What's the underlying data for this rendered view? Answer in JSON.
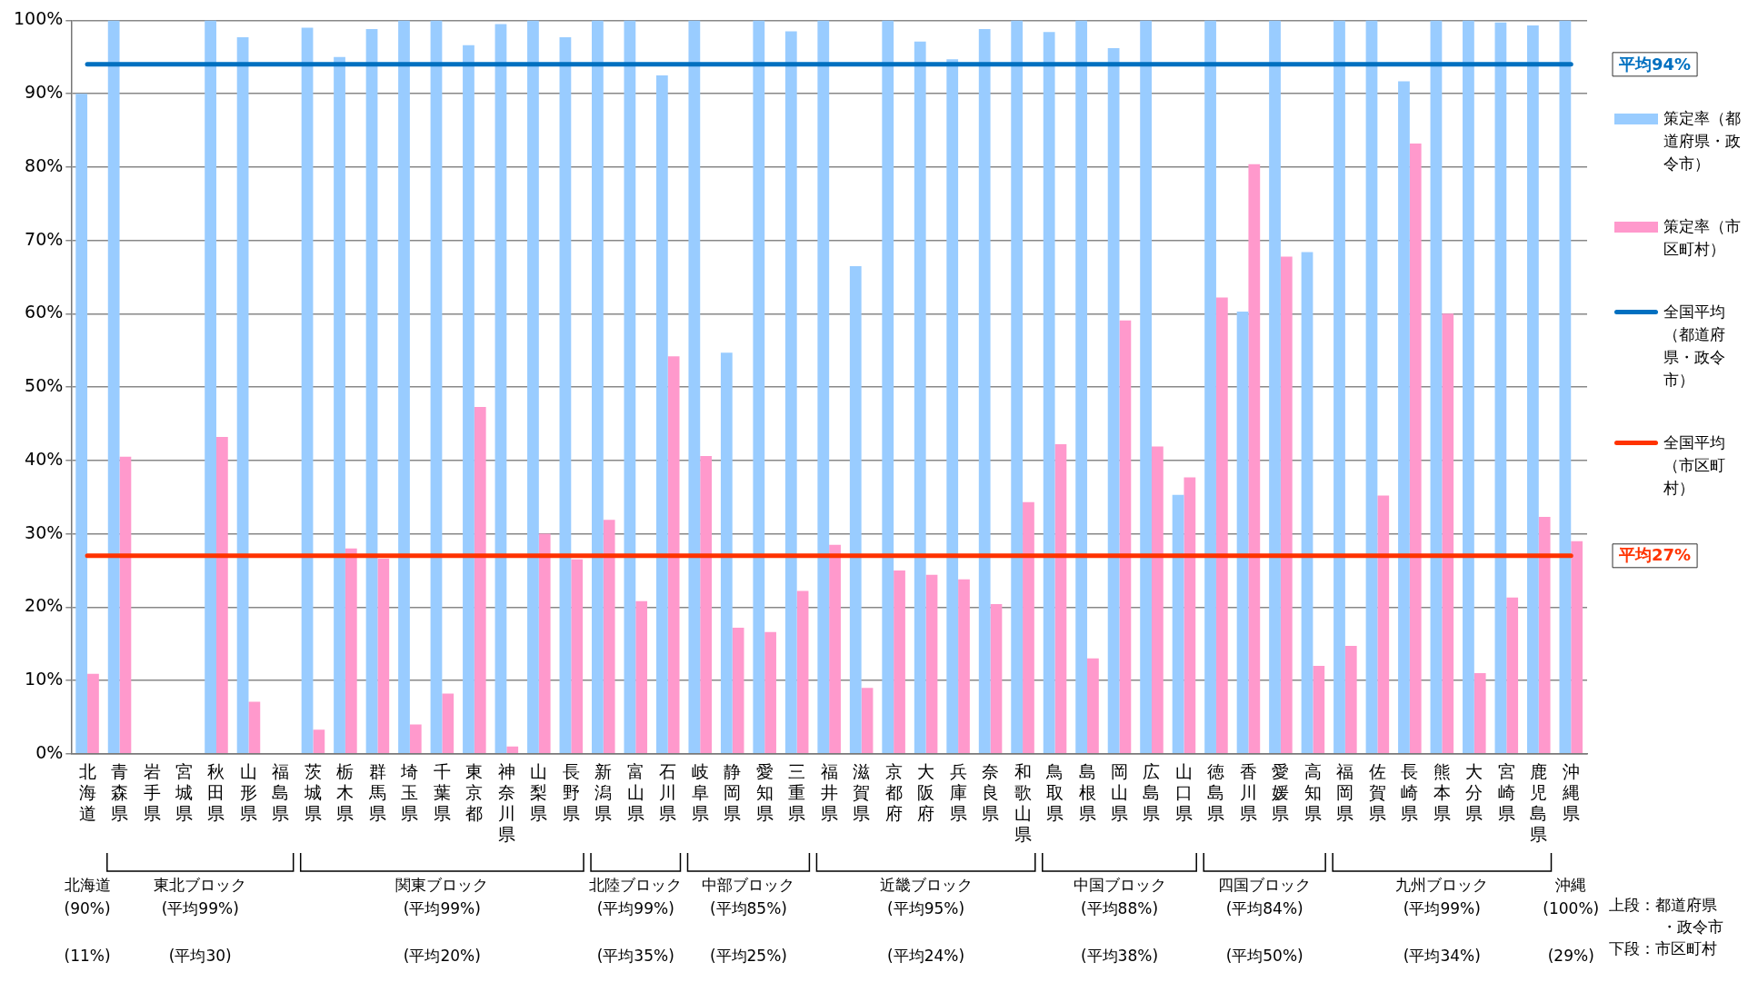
{
  "chart_data": {
    "type": "bar",
    "categories": [
      "北海道",
      "青森県",
      "岩手県",
      "宮城県",
      "秋田県",
      "山形県",
      "福島県",
      "茨城県",
      "栃木県",
      "群馬県",
      "埼玉県",
      "千葉県",
      "東京都",
      "神奈川県",
      "山梨県",
      "長野県",
      "新潟県",
      "富山県",
      "石川県",
      "岐阜県",
      "静岡県",
      "愛知県",
      "三重県",
      "福井県",
      "滋賀県",
      "京都府",
      "大阪府",
      "兵庫県",
      "奈良県",
      "和歌山県",
      "鳥取県",
      "島根県",
      "岡山県",
      "広島県",
      "山口県",
      "徳島県",
      "香川県",
      "愛媛県",
      "高知県",
      "福岡県",
      "佐賀県",
      "長崎県",
      "熊本県",
      "大分県",
      "宮崎県",
      "鹿児島県",
      "沖縄県"
    ],
    "series": [
      {
        "name": "策定率（都道府県・政令市）",
        "color": "#99ccff",
        "values": [
          90,
          100,
          null,
          null,
          100,
          97.7,
          null,
          99,
          95,
          98.8,
          100,
          100,
          96.6,
          99.5,
          100,
          97.7,
          100,
          100,
          92.5,
          100,
          54.7,
          100,
          98.5,
          100,
          66.5,
          100,
          97.1,
          94.7,
          98.8,
          100,
          98.4,
          100,
          96.2,
          100,
          35.3,
          100,
          60.3,
          100,
          68.4,
          100,
          100,
          91.7,
          100,
          100,
          99.7,
          99.3,
          100
        ]
      },
      {
        "name": "策定率（市区町村）",
        "color": "#ff99cc",
        "values": [
          10.9,
          40.5,
          null,
          null,
          43.2,
          7.1,
          null,
          3.3,
          28,
          26.6,
          4,
          8.2,
          47.3,
          1,
          30,
          26.5,
          31.9,
          20.8,
          54.2,
          40.6,
          17.2,
          16.6,
          22.2,
          28.5,
          9,
          25,
          24.4,
          23.8,
          20.4,
          34.3,
          42.2,
          13,
          59.1,
          41.9,
          37.7,
          62.2,
          80.4,
          67.8,
          12,
          14.7,
          35.2,
          83.2,
          60,
          11,
          21.3,
          32.3,
          29
        ]
      },
      {
        "name": "全国平均（都道府県・政令市）",
        "type": "line",
        "color": "#0070c0",
        "values": [
          94,
          94,
          94,
          94,
          94,
          94,
          94,
          94,
          94,
          94,
          94,
          94,
          94,
          94,
          94,
          94,
          94,
          94,
          94,
          94,
          94,
          94,
          94,
          94,
          94,
          94,
          94,
          94,
          94,
          94,
          94,
          94,
          94,
          94,
          94,
          94,
          94,
          94,
          94,
          94,
          94,
          94,
          94,
          94,
          94,
          94,
          94
        ]
      },
      {
        "name": "全国平均（市区町村）",
        "type": "line",
        "color": "#ff3300",
        "values": [
          27,
          27,
          27,
          27,
          27,
          27,
          27,
          27,
          27,
          27,
          27,
          27,
          27,
          27,
          27,
          27,
          27,
          27,
          27,
          27,
          27,
          27,
          27,
          27,
          27,
          27,
          27,
          27,
          27,
          27,
          27,
          27,
          27,
          27,
          27,
          27,
          27,
          27,
          27,
          27,
          27,
          27,
          27,
          27,
          27,
          27,
          27
        ]
      }
    ],
    "ylim": [
      0,
      100
    ],
    "yticks": [
      {
        "value": 0,
        "label": "0%"
      },
      {
        "value": 10,
        "label": "10%"
      },
      {
        "value": 20,
        "label": "20%"
      },
      {
        "value": 30,
        "label": "30%"
      },
      {
        "value": 40,
        "label": "40%"
      },
      {
        "value": 50,
        "label": "50%"
      },
      {
        "value": 60,
        "label": "60%"
      },
      {
        "value": 70,
        "label": "70%"
      },
      {
        "value": 80,
        "label": "80%"
      },
      {
        "value": 90,
        "label": "90%"
      },
      {
        "value": 100,
        "label": "100%"
      }
    ],
    "grid": "y",
    "legend": "right",
    "annotations": [
      "平均94%",
      "平均27%",
      "北海道\n(90%)\n\n(11%)",
      "東北ブロック\n(平均99%)\n\n(平均30)",
      "関東ブロック\n(平均99%)\n\n(平均20%)",
      "北陸ブロック\n(平均99%)\n\n(平均35%)",
      "中部ブロック\n(平均85%)\n\n(平均25%)",
      "近畿ブロック\n(平均95%)\n\n(平均24%)",
      "中国ブロック\n(平均88%)\n\n(平均38%)",
      "四国ブロック\n(平均84%)\n\n(平均50%)",
      "九州ブロック\n(平均99%)\n\n(平均34%)",
      "沖縄\n(100%)\n\n(29%)",
      "上段：都道府県・政令市",
      "下段：市区町村"
    ]
  }
}
